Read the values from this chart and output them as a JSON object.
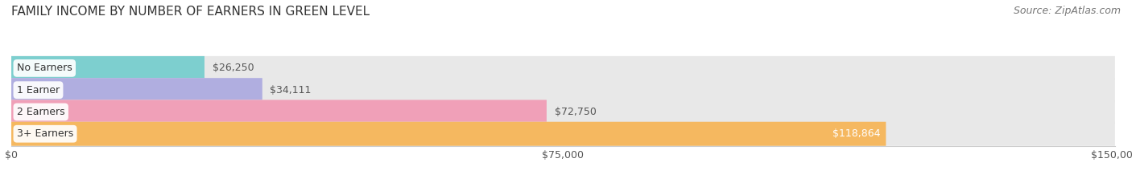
{
  "title": "FAMILY INCOME BY NUMBER OF EARNERS IN GREEN LEVEL",
  "source": "Source: ZipAtlas.com",
  "categories": [
    "No Earners",
    "1 Earner",
    "2 Earners",
    "3+ Earners"
  ],
  "values": [
    26250,
    34111,
    72750,
    118864
  ],
  "value_labels": [
    "$26,250",
    "$34,111",
    "$72,750",
    "$118,864"
  ],
  "bar_colors": [
    "#7dcfcf",
    "#b0aee0",
    "#f0a0b8",
    "#f5b860"
  ],
  "bar_bg_color": "#e8e8e8",
  "xlim": [
    0,
    150000
  ],
  "xticks": [
    0,
    75000,
    150000
  ],
  "xticklabels": [
    "$0",
    "$75,000",
    "$150,000"
  ],
  "title_fontsize": 11,
  "source_fontsize": 9,
  "label_fontsize": 9,
  "value_fontsize": 9,
  "background_color": "#ffffff",
  "bar_height": 0.55,
  "inner_label_color": "#ffffff",
  "outer_label_color": "#555555"
}
